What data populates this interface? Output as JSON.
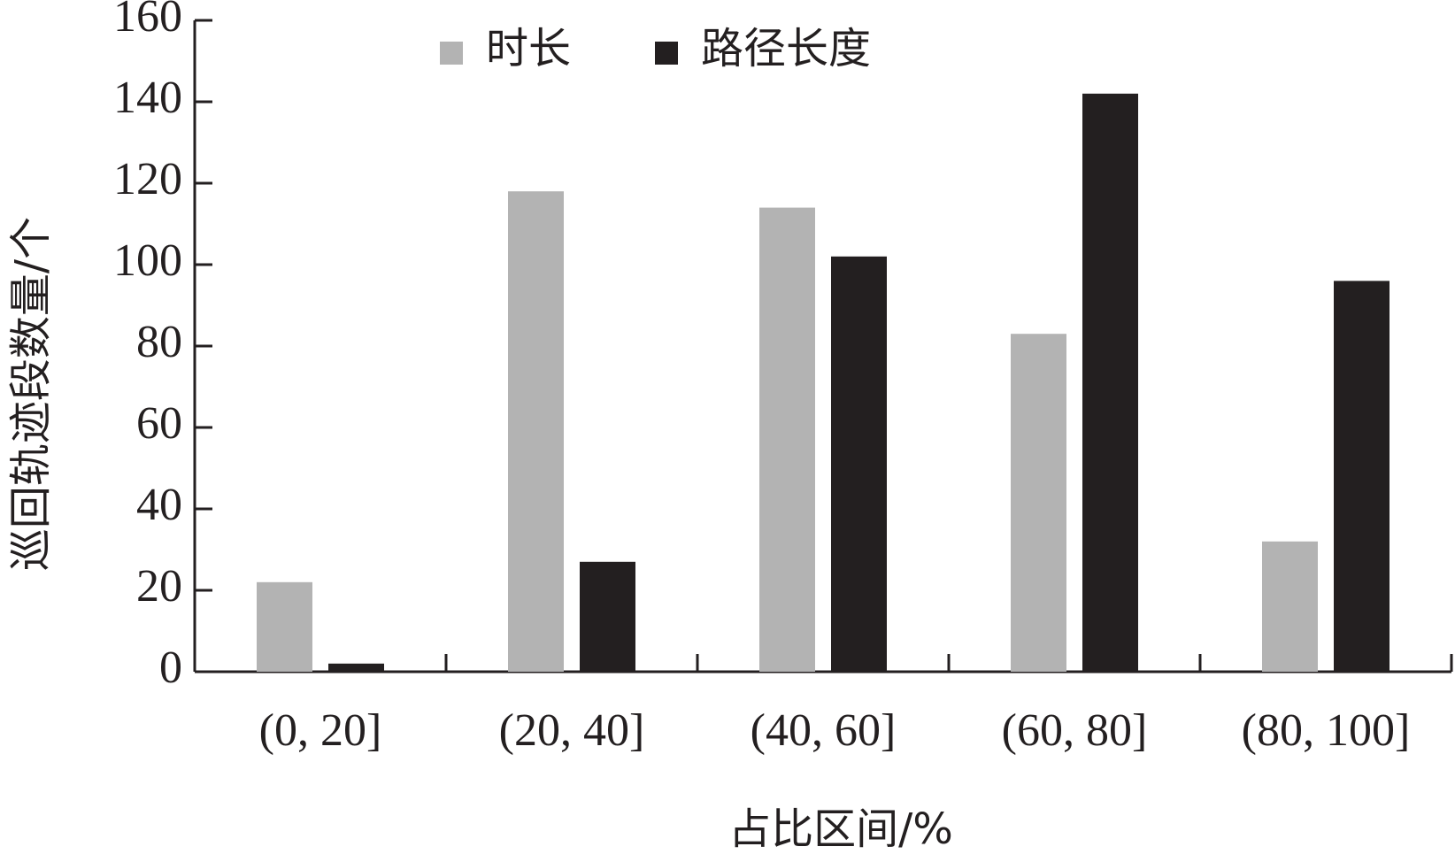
{
  "chart_data": {
    "type": "bar",
    "x_label": "占比区间/%",
    "y_label": "巡回轨迹段数量/个",
    "categories": [
      "(0, 20]",
      "(20, 40]",
      "(40, 60]",
      "(60, 80]",
      "(80, 100]"
    ],
    "series": [
      {
        "name": "时长",
        "color": "#b3b3b3",
        "values": [
          22,
          118,
          114,
          83,
          32
        ]
      },
      {
        "name": "路径长度",
        "color": "#231f20",
        "values": [
          2,
          27,
          102,
          142,
          96
        ]
      }
    ],
    "ylim": [
      0,
      160
    ],
    "yticks": [
      0,
      20,
      40,
      60,
      80,
      100,
      120,
      140,
      160
    ],
    "legend": "top"
  }
}
